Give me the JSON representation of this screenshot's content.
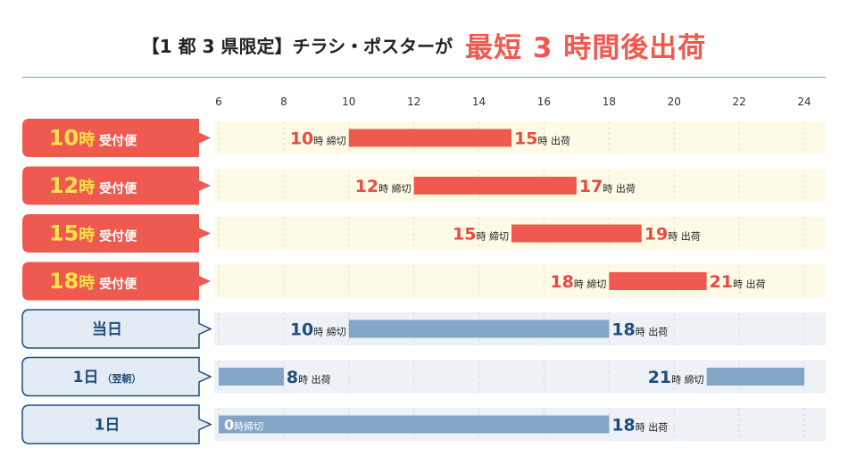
{
  "title": {
    "main": "【1 都 3 県限定】チラシ・ポスターが",
    "highlight": "最短 3 時間後出荷"
  },
  "colors": {
    "accent": "#ee5a50",
    "accent_text": "#e84a3f",
    "day_text": "#1f4e79",
    "red_band": "#fdfbe6",
    "blue_band": "#eef1f5",
    "blue_bar": "#83a5c8",
    "blue_box": "#e3ebf4",
    "blue_border": "#1f4e79"
  },
  "chart_data": {
    "type": "bar",
    "x_ticks": [
      6,
      8,
      10,
      12,
      14,
      16,
      18,
      20,
      22,
      24
    ],
    "xlim": [
      6,
      24
    ],
    "rows": [
      {
        "group": "red",
        "label_num": "10",
        "label_hour_suffix": "時",
        "label_suffix": "受付便",
        "bars": [
          {
            "start": 10,
            "end": 15
          }
        ],
        "annotations": [
          {
            "num": "10",
            "unit": "時",
            "note": "締切",
            "at": 10,
            "side": "left"
          },
          {
            "num": "15",
            "unit": "時",
            "note": "出荷",
            "at": 15,
            "side": "right"
          }
        ]
      },
      {
        "group": "red",
        "label_num": "12",
        "label_hour_suffix": "時",
        "label_suffix": "受付便",
        "bars": [
          {
            "start": 12,
            "end": 17
          }
        ],
        "annotations": [
          {
            "num": "12",
            "unit": "時",
            "note": "締切",
            "at": 12,
            "side": "left"
          },
          {
            "num": "17",
            "unit": "時",
            "note": "出荷",
            "at": 17,
            "side": "right"
          }
        ]
      },
      {
        "group": "red",
        "label_num": "15",
        "label_hour_suffix": "時",
        "label_suffix": "受付便",
        "bars": [
          {
            "start": 15,
            "end": 19
          }
        ],
        "annotations": [
          {
            "num": "15",
            "unit": "時",
            "note": "締切",
            "at": 15,
            "side": "left"
          },
          {
            "num": "19",
            "unit": "時",
            "note": "出荷",
            "at": 19,
            "side": "right"
          }
        ]
      },
      {
        "group": "red",
        "label_num": "18",
        "label_hour_suffix": "時",
        "label_suffix": "受付便",
        "bars": [
          {
            "start": 18,
            "end": 21
          }
        ],
        "annotations": [
          {
            "num": "18",
            "unit": "時",
            "note": "締切",
            "at": 18,
            "side": "left"
          },
          {
            "num": "21",
            "unit": "時",
            "note": "出荷",
            "at": 21,
            "side": "right"
          }
        ]
      },
      {
        "group": "blue",
        "label_text": "当日",
        "bars": [
          {
            "start": 10,
            "end": 18
          }
        ],
        "annotations": [
          {
            "num": "10",
            "unit": "時",
            "note": "締切",
            "at": 10,
            "side": "left"
          },
          {
            "num": "18",
            "unit": "時",
            "note": "出荷",
            "at": 18,
            "side": "right"
          }
        ]
      },
      {
        "group": "blue",
        "label_text": "1日",
        "label_sub": "（翌朝）",
        "bars": [
          {
            "start": 6,
            "end": 8
          },
          {
            "start": 21,
            "end": 24
          }
        ],
        "annotations": [
          {
            "num": "8",
            "unit": "時",
            "note": "出荷",
            "at": 8,
            "side": "right"
          },
          {
            "num": "21",
            "unit": "時",
            "note": "締切",
            "at": 21,
            "side": "left"
          }
        ]
      },
      {
        "group": "blue",
        "label_text": "1日",
        "bars": [
          {
            "start": 6,
            "end": 18
          }
        ],
        "annotations": [
          {
            "num": "0",
            "unit": "時",
            "note": "締切",
            "at": 6,
            "side": "inside-start"
          },
          {
            "num": "18",
            "unit": "時",
            "note": "出荷",
            "at": 18,
            "side": "right"
          }
        ]
      }
    ]
  }
}
